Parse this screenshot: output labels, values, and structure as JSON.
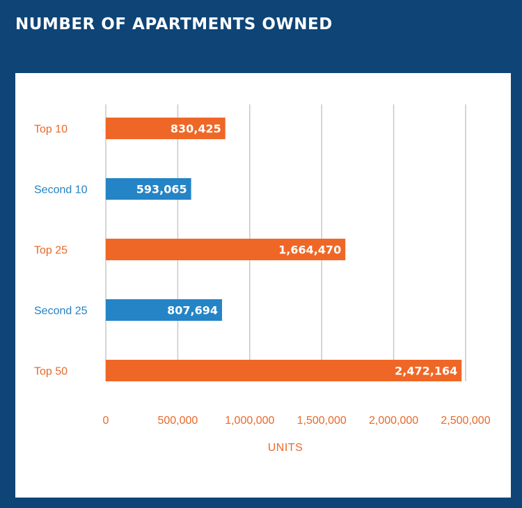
{
  "title": "NUMBER OF APARTMENTS OWNED",
  "colors": {
    "orange": "#ef6726",
    "blue": "#2484c6",
    "grid": "#c8c8c8",
    "frame": "#0e4476"
  },
  "chart_data": {
    "type": "bar",
    "orientation": "horizontal",
    "categories": [
      "Top 10",
      "Second 10",
      "Top 25",
      "Second 25",
      "Top 50"
    ],
    "values": [
      830425,
      593065,
      1664470,
      807694,
      2472164
    ],
    "value_labels": [
      "830,425",
      "593,065",
      "1,664,470",
      "807,694",
      "2,472,164"
    ],
    "bar_colors": [
      "#ef6726",
      "#2484c6",
      "#ef6726",
      "#2484c6",
      "#ef6726"
    ],
    "label_colors": [
      "#e8692a",
      "#2580c2",
      "#e8692a",
      "#2580c2",
      "#e8692a"
    ],
    "xlabel": "UNITS",
    "xlim": [
      0,
      2500000
    ],
    "xticks": [
      0,
      500000,
      1000000,
      1500000,
      2000000,
      2500000
    ],
    "xtick_labels": [
      "0",
      "500,000",
      "1,000,000",
      "1,500,000",
      "2,000,000",
      "2,500,000"
    ],
    "grid": true
  }
}
